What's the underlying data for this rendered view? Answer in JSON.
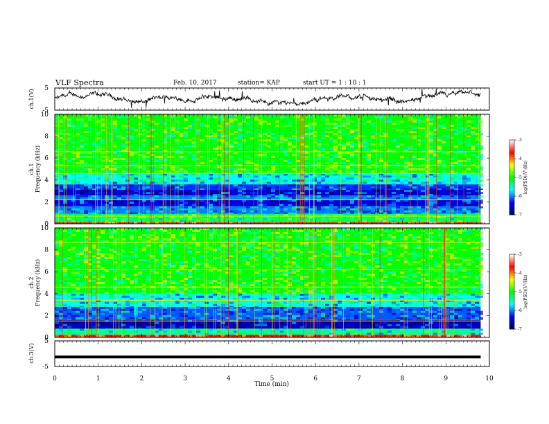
{
  "header": {
    "title": "VLF Spectra",
    "date": "Feb. 10, 2017",
    "station": "station= KAP",
    "start_ut": "start  UT =   1 : 10 : 1"
  },
  "chart_data": [
    {
      "type": "line",
      "panel": "ch1-waveform",
      "ylabel": "ch.1(V)",
      "ylim": [
        -5,
        5
      ],
      "yticks": [
        "5",
        "-5"
      ],
      "xlim": [
        0,
        10
      ],
      "x_end_data": 9.8,
      "approx_level": 0,
      "line_color": "#000000"
    },
    {
      "type": "heatmap",
      "panel": "ch1-spectrogram",
      "ylabel": "ch.1\nFrequency  (kHz)",
      "ylim": [
        0,
        10
      ],
      "yticks": [
        "0",
        "2",
        "4",
        "6",
        "8",
        "10"
      ],
      "xlim": [
        0,
        10
      ],
      "x_end_data": 9.8,
      "colorbar": {
        "label": "log(PSD)(V²/Hz)",
        "range": [
          -7,
          -3
        ],
        "ticks": [
          "-3",
          "-4",
          "-5",
          "-6",
          "-7"
        ],
        "colormap": [
          "#000060",
          "#0000ff",
          "#00ffff",
          "#00ff00",
          "#ffff00",
          "#ff0000",
          "#ffffff"
        ]
      },
      "bands": [
        {
          "f_low": 0.0,
          "f_high": 0.15,
          "level": -3.8
        },
        {
          "f_low": 0.15,
          "f_high": 0.9,
          "level": -5.2
        },
        {
          "f_low": 0.9,
          "f_high": 1.6,
          "level": -6.0
        },
        {
          "f_low": 1.6,
          "f_high": 2.2,
          "level": -6.4
        },
        {
          "f_low": 2.2,
          "f_high": 2.6,
          "level": -6.0
        },
        {
          "f_low": 2.6,
          "f_high": 3.1,
          "level": -6.5
        },
        {
          "f_low": 3.1,
          "f_high": 3.6,
          "level": -6.2
        },
        {
          "f_low": 3.6,
          "f_high": 4.6,
          "level": -5.6
        },
        {
          "f_low": 4.6,
          "f_high": 10.0,
          "level": -5.0
        }
      ],
      "lines_khz": [
        0.7,
        2.2,
        4.6,
        5.3,
        6.6
      ]
    },
    {
      "type": "heatmap",
      "panel": "ch2-spectrogram",
      "ylabel": "ch.2\nFrequency  (kHz)",
      "ylim": [
        0,
        10
      ],
      "yticks": [
        "0",
        "2",
        "4",
        "6",
        "8",
        "10"
      ],
      "xlim": [
        0,
        10
      ],
      "x_end_data": 9.8,
      "colorbar": {
        "label": "log(PSD)(V²/Hz)",
        "range": [
          -7,
          -3
        ],
        "ticks": [
          "-3",
          "-4",
          "-5",
          "-6",
          "-7"
        ],
        "colormap": [
          "#000060",
          "#0000ff",
          "#00ffff",
          "#00ff00",
          "#ffff00",
          "#ff0000",
          "#ffffff"
        ]
      },
      "bands": [
        {
          "f_low": 0.0,
          "f_high": 0.25,
          "level": -3.7
        },
        {
          "f_low": 0.25,
          "f_high": 0.8,
          "level": -5.4
        },
        {
          "f_low": 0.8,
          "f_high": 1.6,
          "level": -6.6
        },
        {
          "f_low": 1.6,
          "f_high": 2.8,
          "level": -6.1
        },
        {
          "f_low": 2.8,
          "f_high": 4.0,
          "level": -5.6
        },
        {
          "f_low": 4.0,
          "f_high": 10.0,
          "level": -5.0
        }
      ],
      "lines_khz": [
        1.5,
        3.4,
        4.6,
        6.2,
        8.7
      ]
    },
    {
      "type": "line",
      "panel": "ch3-waveform",
      "ylabel": "ch.3(V)",
      "ylim": [
        -5,
        5
      ],
      "yticks": [
        "5",
        "-5"
      ],
      "xlim": [
        0,
        10
      ],
      "x_end_data": 9.8,
      "constant_value": -1.3,
      "xlabel": "Time  (min)",
      "xticks": [
        "0",
        "1",
        "2",
        "3",
        "4",
        "5",
        "6",
        "7",
        "8",
        "9",
        "10"
      ]
    }
  ]
}
